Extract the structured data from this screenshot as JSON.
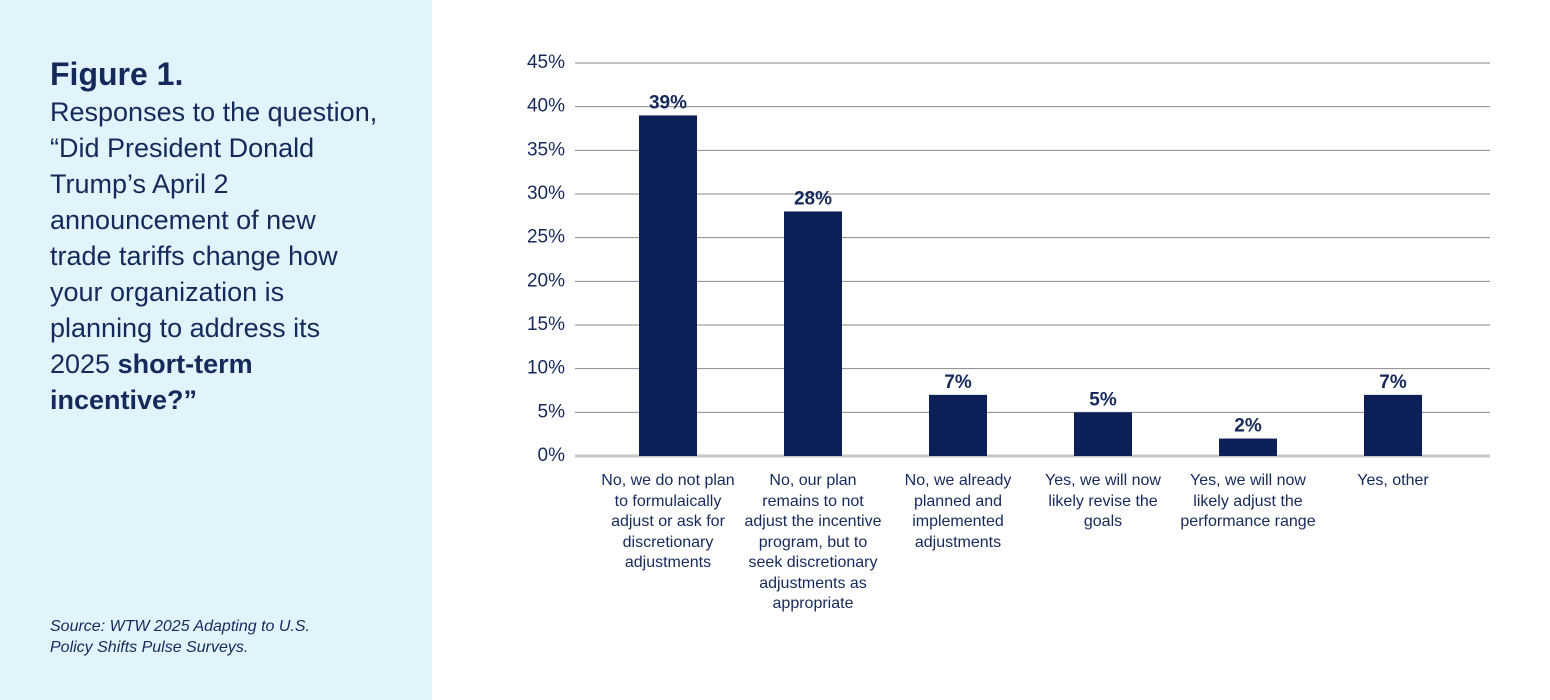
{
  "figure": {
    "title": "Figure 1.",
    "question": "Responses to the question, “Did President Donald Trump’s April 2 announcement of new trade tariffs change how your organization is planning to address its 2025",
    "question_bold": "short-term incentive?”",
    "source": "Source: WTW 2025 Adapting to U.S. Policy Shifts Pulse Surveys."
  },
  "chart_data": {
    "type": "bar",
    "categories": [
      "No, we do not plan to formulaically adjust or ask for discretionary adjustments",
      "No, our plan remains to not adjust the incentive program, but to seek discretionary adjustments as appropriate",
      "No, we already planned and implemented adjustments",
      "Yes, we will now likely revise the goals",
      "Yes, we will now likely adjust the performance range",
      "Yes, other"
    ],
    "values": [
      39,
      28,
      7,
      5,
      2,
      7
    ],
    "value_labels": [
      "39%",
      "28%",
      "7%",
      "5%",
      "2%",
      "7%"
    ],
    "color": "#0c1f56",
    "ylim": [
      0,
      45
    ],
    "yticks": [
      {
        "value": 0,
        "label": "0%"
      },
      {
        "value": 5,
        "label": "5%"
      },
      {
        "value": 10,
        "label": "10%"
      },
      {
        "value": 15,
        "label": "15%"
      },
      {
        "value": 20,
        "label": "20%"
      },
      {
        "value": 25,
        "label": "25%"
      },
      {
        "value": 30,
        "label": "30%"
      },
      {
        "value": 35,
        "label": "35%"
      },
      {
        "value": 40,
        "label": "40%"
      },
      {
        "value": 45,
        "label": "45%"
      }
    ],
    "grid": true
  }
}
